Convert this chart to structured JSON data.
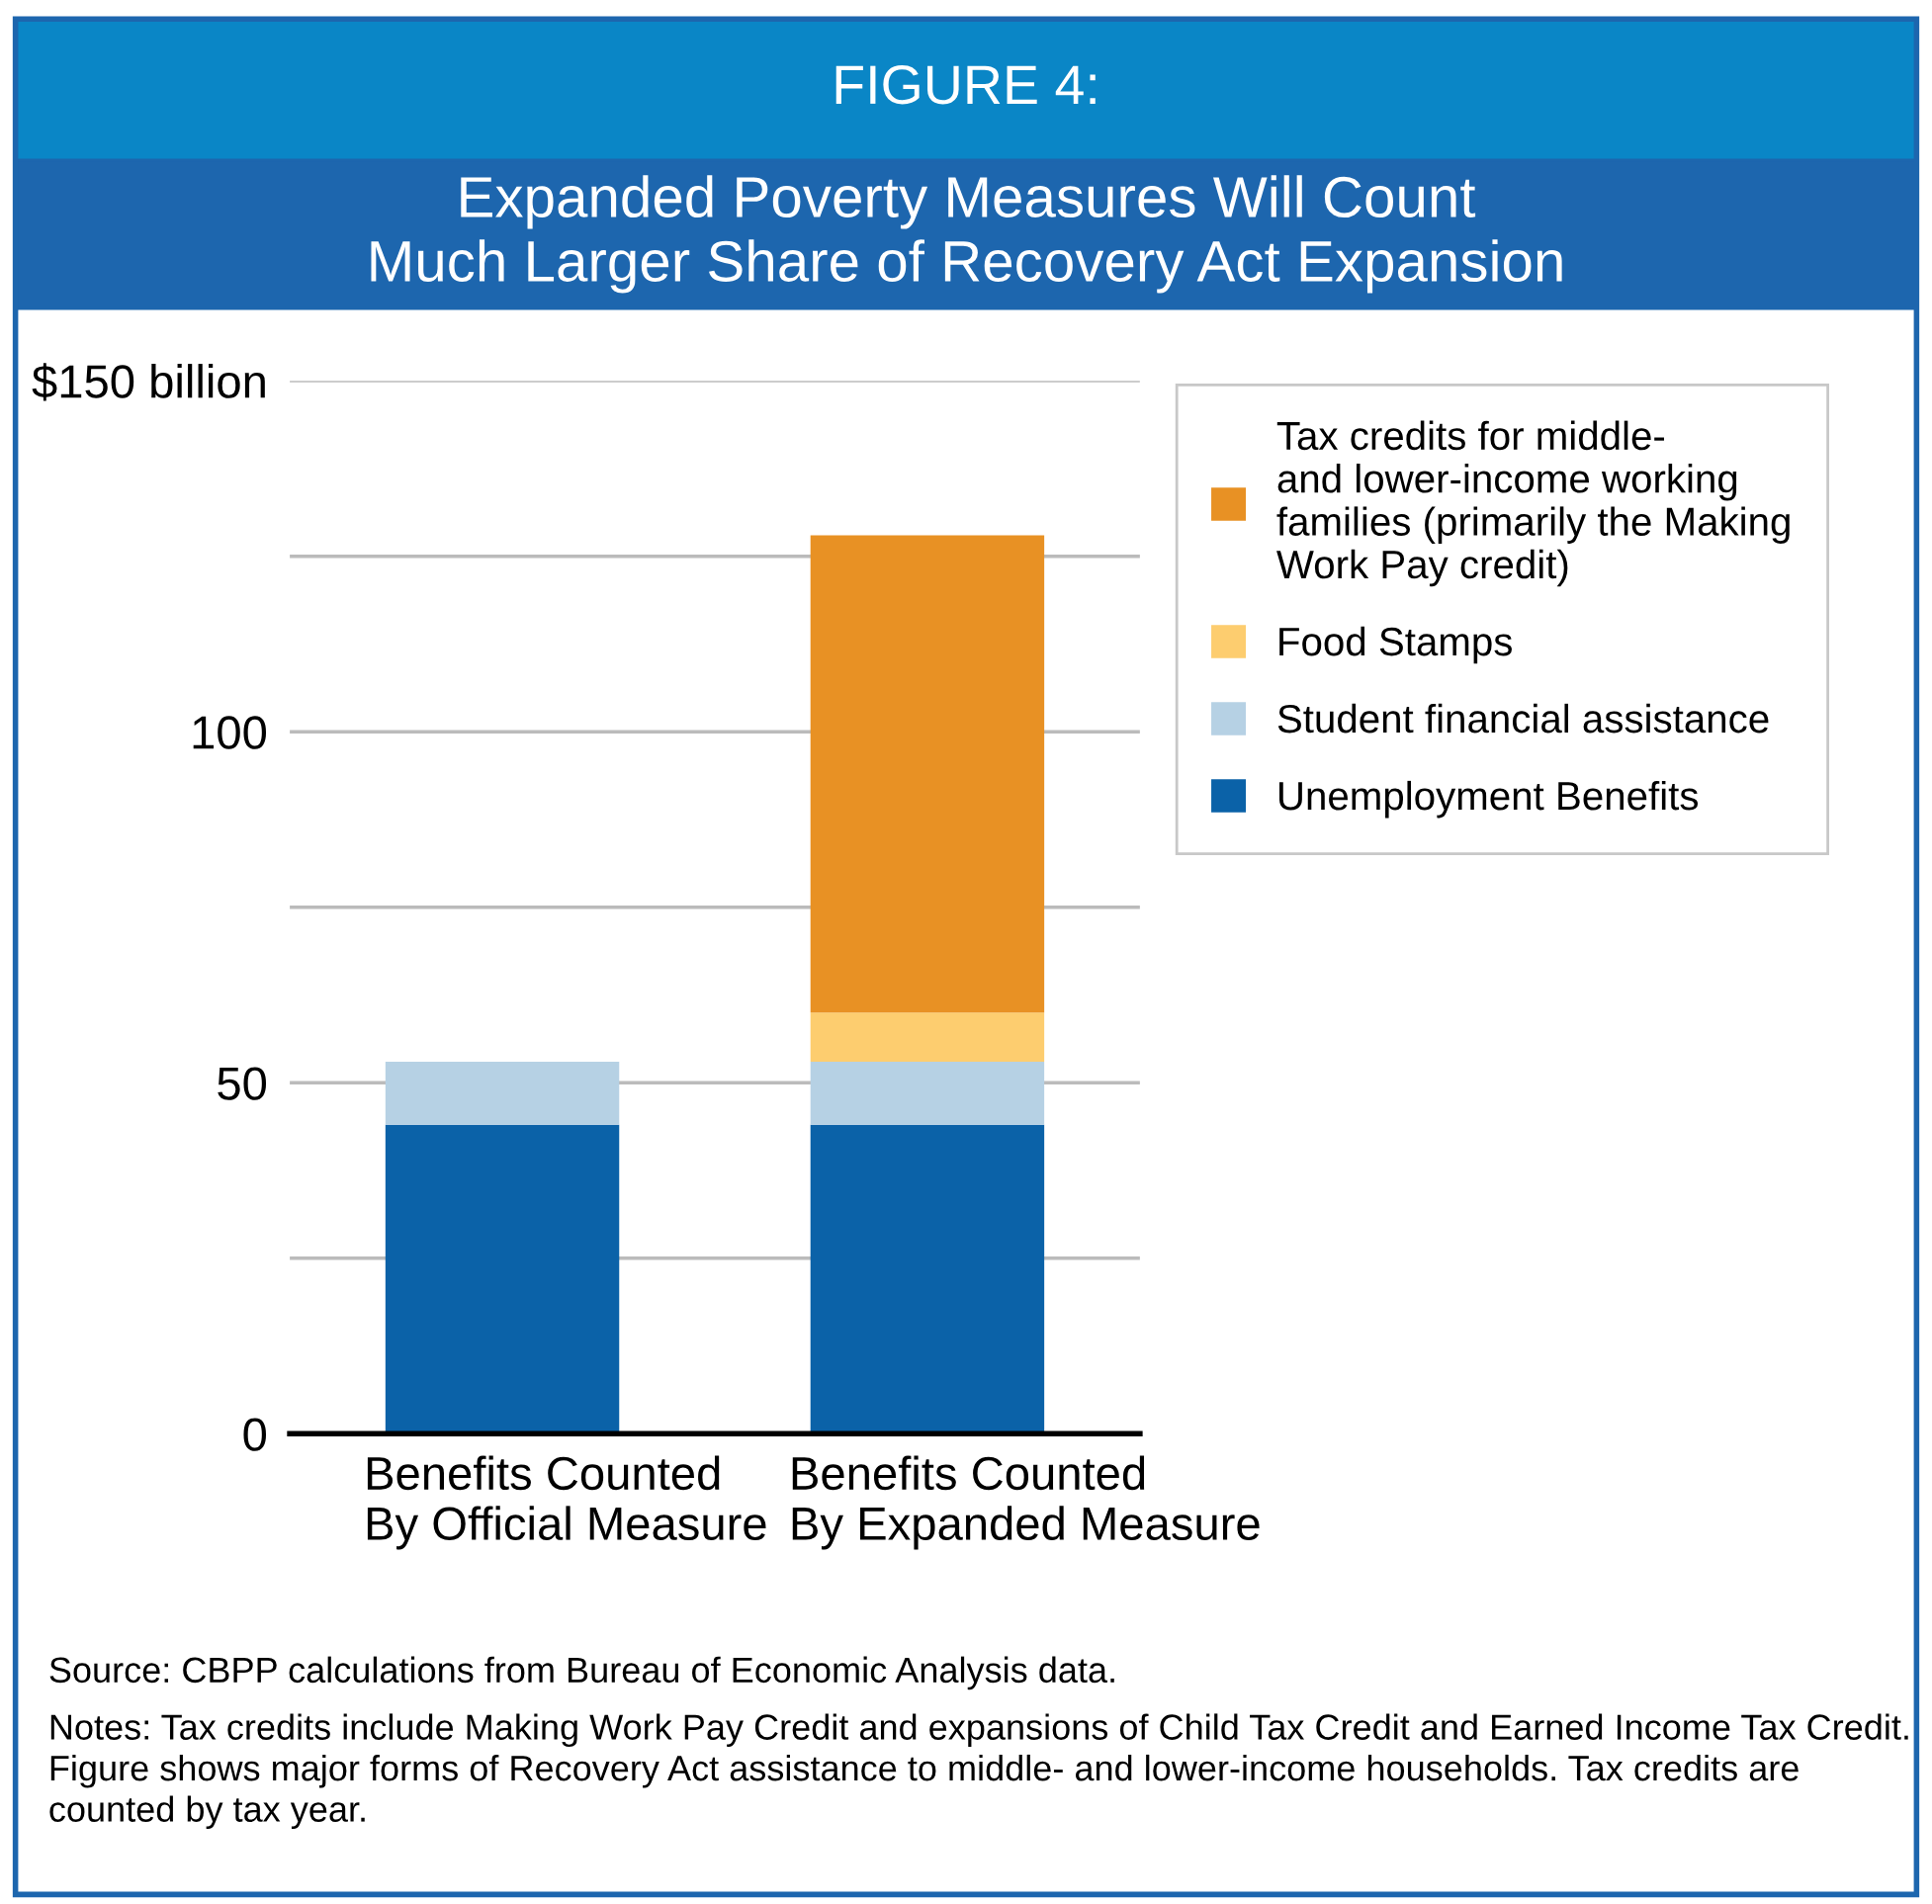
{
  "chart_data": {
    "type": "bar",
    "stacked": true,
    "subtitle": "FIGURE 4:",
    "title": "Expanded Poverty Measures Will Count\nMuch Larger Share of Recovery Act Expansion",
    "categories": [
      "Benefits Counted\nBy Official Measure",
      "Benefits Counted\nBy Expanded Measure"
    ],
    "series": [
      {
        "name": "Unemployment Benefits",
        "color": "#0b62a8",
        "values": [
          44,
          44
        ]
      },
      {
        "name": "Student financial assistance",
        "color": "#b6d1e4",
        "values": [
          9,
          9
        ]
      },
      {
        "name": "Food Stamps",
        "color": "#fdcd6f",
        "values": [
          0,
          7
        ]
      },
      {
        "name": "Tax credits for middle-\nand lower-income working\nfamilies (primarily the Making\nWork Pay credit)",
        "color": "#e89124",
        "values": [
          0,
          68
        ]
      }
    ],
    "ylim": [
      0,
      150
    ],
    "yticks": [
      0,
      {
        "value": 25,
        "label": null
      },
      50,
      {
        "value": 75,
        "label": null
      },
      100,
      {
        "value": 125,
        "label": null
      },
      {
        "value": 150,
        "label": "$150 billion"
      }
    ],
    "grid": "y",
    "legend": "top right",
    "annotations": [
      "Source: CBPP calculations from Bureau of Economic Analysis data.",
      "Notes: Tax credits include Making Work Pay Credit and expansions of Child Tax Credit and Earned Income Tax Credit. Figure shows major forms of Recovery Act assistance to middle- and lower-income households. Tax credits are counted by tax year."
    ]
  }
}
